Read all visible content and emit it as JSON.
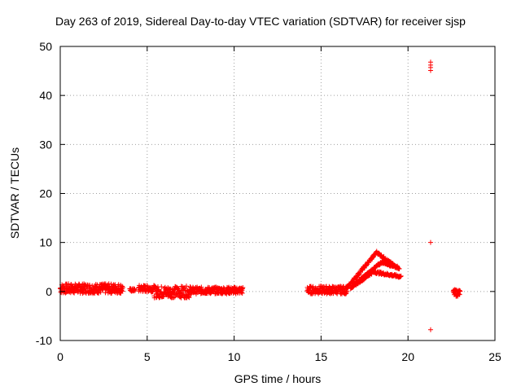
{
  "chart_data": {
    "type": "scatter",
    "title": "Day 263 of 2019, Sidereal Day-to-day VTEC variation (SDTVAR) for receiver sjsp",
    "xlabel": "GPS time / hours",
    "ylabel": "SDTVAR / TECUs",
    "xlim": [
      0,
      25
    ],
    "ylim": [
      -10,
      50
    ],
    "xticks": [
      "0",
      "5",
      "10",
      "15",
      "20",
      "25"
    ],
    "yticks": [
      "-10",
      "0",
      "10",
      "20",
      "30",
      "40",
      "50"
    ],
    "grid": true,
    "marker_color": "#ff0000",
    "series": [
      {
        "name": "SDTVAR",
        "segments": [
          {
            "from_hour": 0.0,
            "to_hour": 3.6,
            "y_center": 0.6,
            "spread": 1.0
          },
          {
            "from_hour": 4.0,
            "to_hour": 4.3,
            "y_center": 0.3,
            "spread": 0.3
          },
          {
            "from_hour": 4.5,
            "to_hour": 5.4,
            "y_center": 0.6,
            "spread": 0.7
          },
          {
            "from_hour": 5.4,
            "to_hour": 7.5,
            "y_center": -0.1,
            "spread": 1.2
          },
          {
            "from_hour": 7.5,
            "to_hour": 10.5,
            "y_center": 0.2,
            "spread": 0.7
          },
          {
            "from_hour": 14.2,
            "to_hour": 16.5,
            "y_center": 0.3,
            "spread": 0.8
          },
          {
            "from_hour": 22.6,
            "to_hour": 23.0,
            "y_center": -0.3,
            "spread": 0.7
          }
        ],
        "rising_tracks": [
          {
            "from_hour": 16.5,
            "to_hour": 18.2,
            "y_start": 0.8,
            "y_end": 8.0
          },
          {
            "from_hour": 18.2,
            "to_hour": 19.3,
            "y_start": 8.0,
            "y_end": 5.0
          },
          {
            "from_hour": 16.7,
            "to_hour": 18.5,
            "y_start": 0.8,
            "y_end": 6.0
          },
          {
            "from_hour": 18.5,
            "to_hour": 19.5,
            "y_start": 6.0,
            "y_end": 4.8
          },
          {
            "from_hour": 16.8,
            "to_hour": 18.0,
            "y_start": 1.0,
            "y_end": 4.0
          },
          {
            "from_hour": 18.0,
            "to_hour": 19.6,
            "y_start": 4.0,
            "y_end": 3.0
          }
        ],
        "points": [
          {
            "x": 21.3,
            "y": 46.8
          },
          {
            "x": 21.3,
            "y": 46.2
          },
          {
            "x": 21.3,
            "y": 45.7
          },
          {
            "x": 21.3,
            "y": 45.1
          },
          {
            "x": 21.3,
            "y": 10.0
          },
          {
            "x": 21.3,
            "y": -7.8
          }
        ]
      }
    ]
  }
}
